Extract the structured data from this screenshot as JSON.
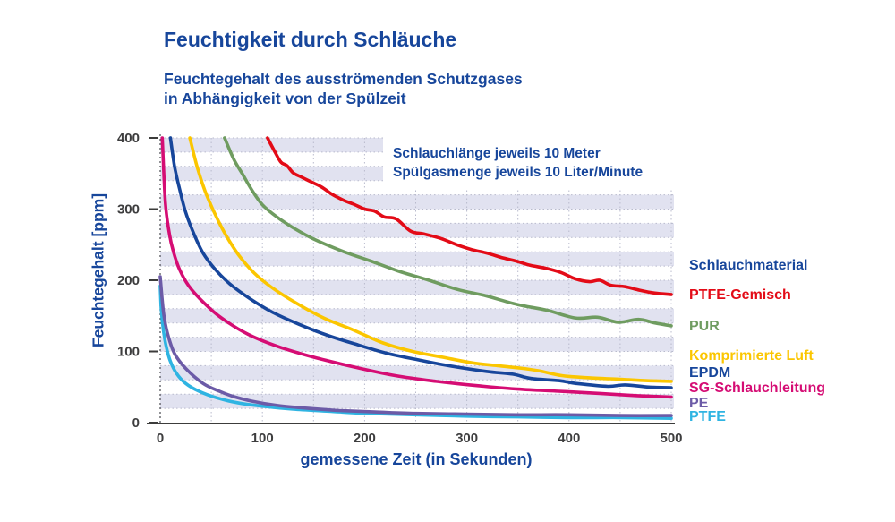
{
  "header": {
    "title": "Feuchtigkeit durch Schläuche",
    "subtitle_line1": "Feuchtegehalt des ausströmenden Schutzgases",
    "subtitle_line2": "in Abhängigkeit von der Spülzeit"
  },
  "chart_data": {
    "type": "line",
    "title": "Feuchtigkeit durch Schläuche",
    "subtitle": "Feuchtegehalt des ausströmenden Schutzgases in Abhängigkeit von der Spülzeit",
    "xlabel": "gemessene Zeit (in Sekunden)",
    "ylabel": "Feuchtegehalt [ppm]",
    "xlim": [
      0,
      500
    ],
    "ylim": [
      0,
      400
    ],
    "x_ticks": [
      0,
      100,
      200,
      300,
      400,
      500
    ],
    "y_ticks": [
      0,
      100,
      200,
      300,
      400
    ],
    "grid": "dotted gridlines every 50 s and every 20 ppm, alternating lavender bands of 20 ppm",
    "legend_position": "right",
    "annotations": [
      "Schlauchlänge jeweils 10 Meter",
      "Spülgasmenge jeweils 10 Liter/Minute"
    ],
    "style": {
      "band_color": "#e1e2f0",
      "grid_color": "#b9bbcd",
      "axis_color": "#3c3c3b",
      "tick_text_color": "#3d3d3e",
      "text_blue": "#17469b"
    },
    "series": [
      {
        "id": "ptfe-gemisch",
        "name": "PTFE-Gemisch",
        "color": "#e30b17",
        "points": [
          [
            105,
            400
          ],
          [
            112,
            381
          ],
          [
            118,
            366
          ],
          [
            124,
            361
          ],
          [
            130,
            351
          ],
          [
            138,
            345
          ],
          [
            148,
            338
          ],
          [
            158,
            331
          ],
          [
            169,
            320
          ],
          [
            180,
            312
          ],
          [
            189,
            307
          ],
          [
            200,
            300
          ],
          [
            210,
            297
          ],
          [
            219,
            289
          ],
          [
            231,
            286
          ],
          [
            245,
            269
          ],
          [
            258,
            265
          ],
          [
            274,
            259
          ],
          [
            290,
            250
          ],
          [
            305,
            243
          ],
          [
            320,
            238
          ],
          [
            334,
            232
          ],
          [
            348,
            227
          ],
          [
            362,
            221
          ],
          [
            377,
            217
          ],
          [
            392,
            211
          ],
          [
            406,
            202
          ],
          [
            420,
            198
          ],
          [
            430,
            200
          ],
          [
            441,
            193
          ],
          [
            455,
            191
          ],
          [
            469,
            186
          ],
          [
            484,
            182
          ],
          [
            500,
            180
          ]
        ]
      },
      {
        "id": "pur",
        "name": "PUR",
        "color": "#6f9c60",
        "points": [
          [
            63,
            400
          ],
          [
            72,
            370
          ],
          [
            81,
            348
          ],
          [
            90,
            326
          ],
          [
            100,
            306
          ],
          [
            114,
            289
          ],
          [
            131,
            273
          ],
          [
            150,
            258
          ],
          [
            178,
            241
          ],
          [
            206,
            227
          ],
          [
            235,
            212
          ],
          [
            263,
            200
          ],
          [
            291,
            187
          ],
          [
            319,
            178
          ],
          [
            349,
            166
          ],
          [
            378,
            158
          ],
          [
            406,
            147
          ],
          [
            428,
            148
          ],
          [
            448,
            141
          ],
          [
            468,
            145
          ],
          [
            484,
            140
          ],
          [
            500,
            136
          ]
        ]
      },
      {
        "id": "komprimierte-luft",
        "name": "Komprimierte Luft",
        "color": "#fbc600",
        "points": [
          [
            29,
            400
          ],
          [
            36,
            360
          ],
          [
            44,
            325
          ],
          [
            53,
            295
          ],
          [
            64,
            264
          ],
          [
            77,
            235
          ],
          [
            92,
            210
          ],
          [
            110,
            189
          ],
          [
            133,
            168
          ],
          [
            160,
            147
          ],
          [
            189,
            130
          ],
          [
            218,
            112
          ],
          [
            247,
            100
          ],
          [
            276,
            92
          ],
          [
            305,
            84
          ],
          [
            330,
            80
          ],
          [
            350,
            77
          ],
          [
            370,
            73
          ],
          [
            393,
            66
          ],
          [
            420,
            63
          ],
          [
            450,
            61
          ],
          [
            475,
            59
          ],
          [
            500,
            58
          ]
        ]
      },
      {
        "id": "epdm",
        "name": "EPDM",
        "color": "#17469b",
        "points": [
          [
            10,
            400
          ],
          [
            14,
            360
          ],
          [
            19,
            328
          ],
          [
            25,
            295
          ],
          [
            33,
            265
          ],
          [
            42,
            238
          ],
          [
            54,
            215
          ],
          [
            68,
            195
          ],
          [
            88,
            174
          ],
          [
            110,
            155
          ],
          [
            136,
            138
          ],
          [
            165,
            122
          ],
          [
            194,
            109
          ],
          [
            223,
            97
          ],
          [
            253,
            88
          ],
          [
            282,
            80
          ],
          [
            319,
            72
          ],
          [
            345,
            68
          ],
          [
            363,
            62
          ],
          [
            390,
            59
          ],
          [
            407,
            55
          ],
          [
            438,
            51
          ],
          [
            455,
            53
          ],
          [
            478,
            50
          ],
          [
            500,
            49
          ]
        ]
      },
      {
        "id": "sg-schlauchleitung",
        "name": "SG-Schlauchleitung",
        "color": "#d50d74",
        "points": [
          [
            2,
            400
          ],
          [
            5,
            310
          ],
          [
            9,
            265
          ],
          [
            13,
            240
          ],
          [
            19,
            215
          ],
          [
            28,
            192
          ],
          [
            43,
            168
          ],
          [
            60,
            147
          ],
          [
            86,
            124
          ],
          [
            115,
            107
          ],
          [
            150,
            92
          ],
          [
            190,
            78
          ],
          [
            230,
            66
          ],
          [
            270,
            58
          ],
          [
            310,
            52
          ],
          [
            350,
            47
          ],
          [
            390,
            44
          ],
          [
            430,
            41
          ],
          [
            465,
            38
          ],
          [
            500,
            36
          ]
        ]
      },
      {
        "id": "ptfe",
        "name": "PTFE",
        "color": "#2fb4e2",
        "points": [
          [
            0,
            192
          ],
          [
            1,
            160
          ],
          [
            3,
            131
          ],
          [
            6,
            106
          ],
          [
            10,
            86
          ],
          [
            16,
            69
          ],
          [
            25,
            55
          ],
          [
            38,
            44
          ],
          [
            55,
            35
          ],
          [
            75,
            28
          ],
          [
            100,
            23
          ],
          [
            130,
            19
          ],
          [
            165,
            16
          ],
          [
            200,
            13
          ],
          [
            250,
            11
          ],
          [
            300,
            9
          ],
          [
            350,
            8
          ],
          [
            400,
            7
          ],
          [
            450,
            7
          ],
          [
            500,
            6
          ]
        ]
      },
      {
        "id": "pe",
        "name": "PE",
        "color": "#6c5ba7",
        "points": [
          [
            0,
            205
          ],
          [
            2,
            172
          ],
          [
            4,
            147
          ],
          [
            8,
            121
          ],
          [
            14,
            97
          ],
          [
            25,
            76
          ],
          [
            42,
            55
          ],
          [
            58,
            44
          ],
          [
            71,
            37
          ],
          [
            90,
            30
          ],
          [
            115,
            24
          ],
          [
            145,
            20
          ],
          [
            175,
            17
          ],
          [
            210,
            15
          ],
          [
            250,
            13
          ],
          [
            300,
            12
          ],
          [
            350,
            11
          ],
          [
            400,
            11
          ],
          [
            450,
            10
          ],
          [
            500,
            10
          ]
        ]
      }
    ]
  },
  "legend": {
    "heading": "Schlauchmaterial",
    "items": [
      {
        "label": "PTFE-Gemisch",
        "color": "#e30b17"
      },
      {
        "label": "PUR",
        "color": "#6f9c60"
      },
      {
        "label": "Komprimierte Luft",
        "color": "#fbc600"
      },
      {
        "label": "EPDM",
        "color": "#17469b"
      },
      {
        "label": "SG-Schlauchleitung",
        "color": "#d50d74"
      },
      {
        "label": "PE",
        "color": "#6c5ba7"
      },
      {
        "label": "PTFE",
        "color": "#2fb4e2"
      }
    ]
  }
}
